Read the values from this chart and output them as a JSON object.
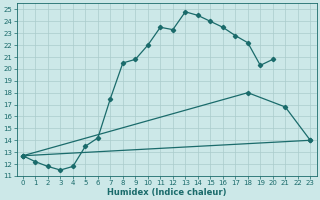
{
  "xlabel": "Humidex (Indice chaleur)",
  "bg_color": "#cce8e8",
  "grid_color": "#aacccc",
  "line_color": "#1a6b6b",
  "xlim": [
    -0.5,
    23.5
  ],
  "ylim": [
    11,
    25.5
  ],
  "xticks": [
    0,
    1,
    2,
    3,
    4,
    5,
    6,
    7,
    8,
    9,
    10,
    11,
    12,
    13,
    14,
    15,
    16,
    17,
    18,
    19,
    20,
    21,
    22,
    23
  ],
  "yticks": [
    11,
    12,
    13,
    14,
    15,
    16,
    17,
    18,
    19,
    20,
    21,
    22,
    23,
    24,
    25
  ],
  "line1_x": [
    0,
    1,
    2,
    3,
    4,
    5,
    6,
    7,
    8,
    9,
    10,
    11,
    12,
    13,
    14,
    15,
    16,
    17,
    18,
    19,
    20
  ],
  "line1_y": [
    12.7,
    12.2,
    11.8,
    11.5,
    11.8,
    13.5,
    14.2,
    17.5,
    20.5,
    20.8,
    22.0,
    23.5,
    23.3,
    24.8,
    24.5,
    24.0,
    23.5,
    22.8,
    22.2,
    20.3,
    20.8
  ],
  "line2_x": [
    0,
    18,
    21,
    23
  ],
  "line2_y": [
    12.7,
    18.0,
    16.8,
    14.0
  ],
  "line3_x": [
    0,
    23
  ],
  "line3_y": [
    12.7,
    14.0
  ],
  "marker": "D",
  "markersize": 2.2,
  "linewidth": 0.9,
  "tick_fontsize": 5.0,
  "xlabel_fontsize": 6.0
}
